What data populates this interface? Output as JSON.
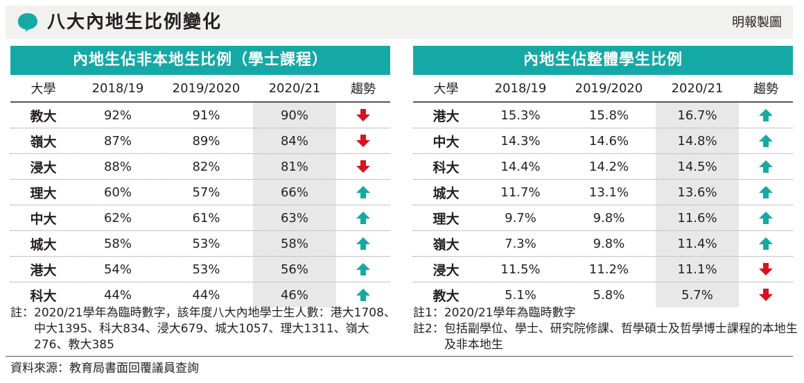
{
  "header": {
    "title": "八大內地生比例變化",
    "credit": "明報製圖"
  },
  "colors": {
    "teal": "#15a9a6",
    "down_arrow": "#d7131e",
    "up_arrow": "#15a9a6",
    "highlight": "#e8e8e8"
  },
  "chart_data": [
    {
      "type": "table",
      "title": "內地生佔非本地生比例（學士課程）",
      "columns": [
        "大學",
        "2018/19",
        "2019/2020",
        "2020/21",
        "趨勢"
      ],
      "rows": [
        {
          "uni": "教大",
          "v1": "92%",
          "v2": "91%",
          "v3": "90%",
          "trend": "down"
        },
        {
          "uni": "嶺大",
          "v1": "87%",
          "v2": "89%",
          "v3": "84%",
          "trend": "down"
        },
        {
          "uni": "浸大",
          "v1": "88%",
          "v2": "82%",
          "v3": "81%",
          "trend": "down"
        },
        {
          "uni": "理大",
          "v1": "60%",
          "v2": "57%",
          "v3": "66%",
          "trend": "up"
        },
        {
          "uni": "中大",
          "v1": "62%",
          "v2": "61%",
          "v3": "63%",
          "trend": "up"
        },
        {
          "uni": "城大",
          "v1": "58%",
          "v2": "53%",
          "v3": "58%",
          "trend": "up"
        },
        {
          "uni": "港大",
          "v1": "54%",
          "v2": "53%",
          "v3": "56%",
          "trend": "up"
        },
        {
          "uni": "科大",
          "v1": "44%",
          "v2": "44%",
          "v3": "46%",
          "trend": "up"
        }
      ]
    },
    {
      "type": "table",
      "title": "內地生佔整體學生比例",
      "columns": [
        "大學",
        "2018/19",
        "2019/2020",
        "2020/21",
        "趨勢"
      ],
      "rows": [
        {
          "uni": "港大",
          "v1": "15.3%",
          "v2": "15.8%",
          "v3": "16.7%",
          "trend": "up"
        },
        {
          "uni": "中大",
          "v1": "14.3%",
          "v2": "14.6%",
          "v3": "14.8%",
          "trend": "up"
        },
        {
          "uni": "科大",
          "v1": "14.4%",
          "v2": "14.2%",
          "v3": "14.5%",
          "trend": "up"
        },
        {
          "uni": "城大",
          "v1": "11.7%",
          "v2": "13.1%",
          "v3": "13.6%",
          "trend": "up"
        },
        {
          "uni": "理大",
          "v1": "9.7%",
          "v2": "9.8%",
          "v3": "11.6%",
          "trend": "up"
        },
        {
          "uni": "嶺大",
          "v1": "7.3%",
          "v2": "9.8%",
          "v3": "11.4%",
          "trend": "up"
        },
        {
          "uni": "浸大",
          "v1": "11.5%",
          "v2": "11.2%",
          "v3": "11.1%",
          "trend": "down"
        },
        {
          "uni": "教大",
          "v1": "5.1%",
          "v2": "5.8%",
          "v3": "5.7%",
          "trend": "down"
        }
      ]
    }
  ],
  "notes_left": {
    "label": "註：",
    "text": "2020/21學年為臨時數字，該年度八大內地學士生人數：港大1708、中大1395、科大834、浸大679、城大1057、理大1311、嶺大276、教大385"
  },
  "notes_right": [
    {
      "label": "註1：",
      "text": "2020/21學年為臨時數字"
    },
    {
      "label": "註2：",
      "text": "包括副學位、學士、研究院修課、哲學碩士及哲學博士課程的本地生及非本地生"
    }
  ],
  "source": "資料來源：教育局書面回覆議員查詢"
}
